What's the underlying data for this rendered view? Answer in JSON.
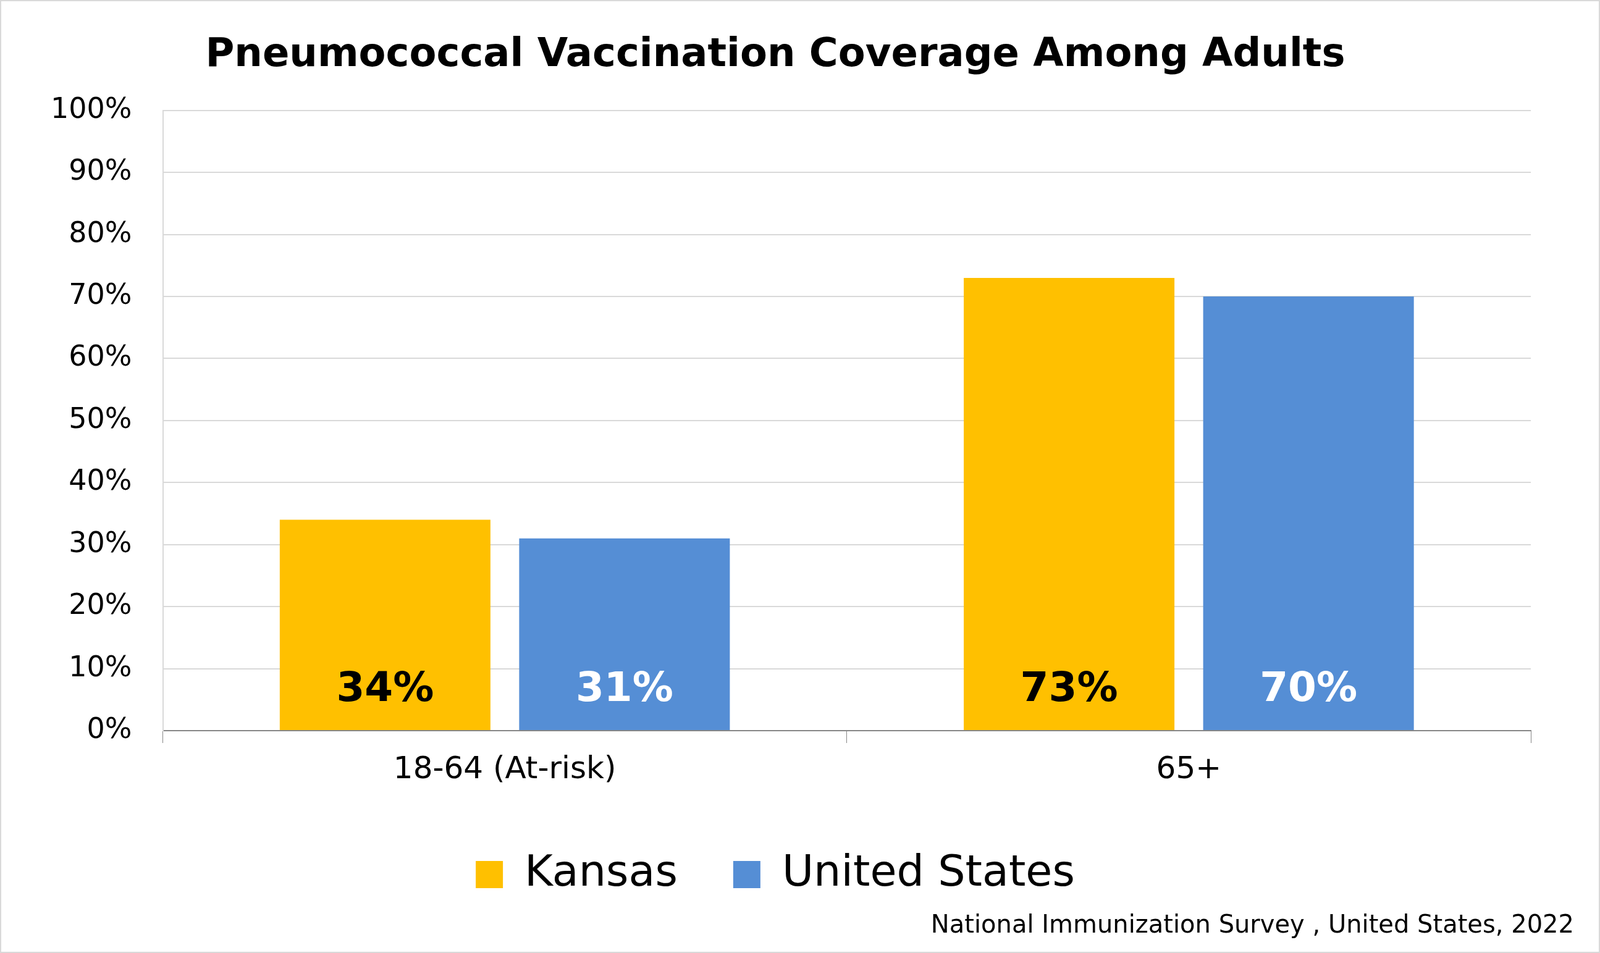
{
  "chart_data": {
    "type": "bar",
    "title": "Pneumococcal Vaccination Coverage Among Adults",
    "source": "National Immunization Survey , United States, 2022",
    "categories": [
      "18-64 (At-risk)",
      "65+"
    ],
    "series": [
      {
        "name": "Kansas",
        "color": "#ffc000",
        "values": [
          34,
          73
        ],
        "value_labels": [
          "34%",
          "73%"
        ]
      },
      {
        "name": "United States",
        "color": "#558ed5",
        "values": [
          31,
          70
        ],
        "value_labels": [
          "31%",
          "70%"
        ]
      }
    ],
    "ylim": [
      0,
      100
    ],
    "yticks": [
      {
        "value": 0,
        "label": "0%"
      },
      {
        "value": 10,
        "label": "10%"
      },
      {
        "value": 20,
        "label": "20%"
      },
      {
        "value": 30,
        "label": "30%"
      },
      {
        "value": 40,
        "label": "40%"
      },
      {
        "value": 50,
        "label": "50%"
      },
      {
        "value": 60,
        "label": "60%"
      },
      {
        "value": 70,
        "label": "70%"
      },
      {
        "value": 80,
        "label": "80%"
      },
      {
        "value": 90,
        "label": "90%"
      },
      {
        "value": 100,
        "label": "100%"
      }
    ],
    "grid": true,
    "legend": "bottom",
    "data_labels": true
  }
}
